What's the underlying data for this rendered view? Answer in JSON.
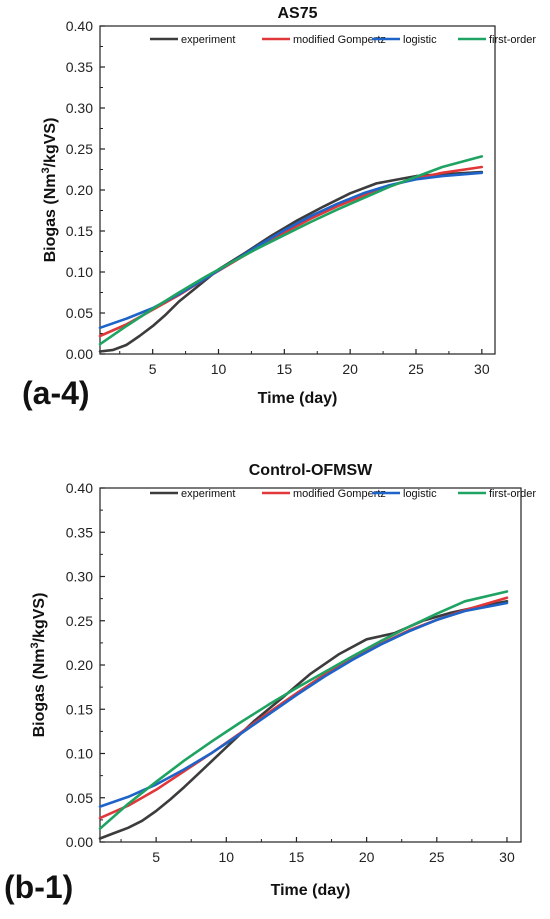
{
  "chart_data": [
    {
      "type": "line",
      "panel_label": "(a-4)",
      "title": "AS75",
      "xlabel": "Time (day)",
      "ylabel_main": "Biogas (Nm",
      "ylabel_sup": "3",
      "ylabel_tail": "/kgVS)",
      "ylabel_bold": true,
      "xlim": [
        1,
        31
      ],
      "ylim": [
        0,
        0.4
      ],
      "xticks": [
        5,
        10,
        15,
        20,
        25,
        30
      ],
      "yticks": [
        "0.00",
        "0.05",
        "0.10",
        "0.15",
        "0.20",
        "0.25",
        "0.30",
        "0.35",
        "0.40"
      ],
      "legend_position": "top",
      "series": [
        {
          "name": "experiment",
          "color": "#3c3c3c",
          "x": [
            1,
            2,
            3,
            4,
            5,
            6,
            7,
            8,
            9,
            10,
            12,
            14,
            16,
            18,
            20,
            22,
            24,
            25,
            26,
            28,
            30
          ],
          "y": [
            0.003,
            0.005,
            0.011,
            0.022,
            0.034,
            0.048,
            0.064,
            0.077,
            0.09,
            0.103,
            0.123,
            0.144,
            0.163,
            0.18,
            0.196,
            0.208,
            0.214,
            0.217,
            0.218,
            0.22,
            0.222
          ]
        },
        {
          "name": "modified Gompertz",
          "color": "#e0383a",
          "x": [
            1,
            3,
            5,
            7,
            9,
            11,
            13,
            15,
            17,
            19,
            21,
            23,
            25,
            27,
            30
          ],
          "y": [
            0.022,
            0.036,
            0.054,
            0.072,
            0.092,
            0.111,
            0.13,
            0.148,
            0.165,
            0.18,
            0.193,
            0.205,
            0.214,
            0.221,
            0.228
          ]
        },
        {
          "name": "logistic",
          "color": "#1e63c8",
          "x": [
            1,
            3,
            5,
            7,
            9,
            11,
            13,
            15,
            17,
            19,
            21,
            23,
            25,
            27,
            30
          ],
          "y": [
            0.032,
            0.043,
            0.056,
            0.073,
            0.092,
            0.112,
            0.132,
            0.151,
            0.168,
            0.183,
            0.196,
            0.206,
            0.213,
            0.217,
            0.221
          ]
        },
        {
          "name": "first-order",
          "color": "#1fa362",
          "x": [
            1,
            3,
            5,
            7,
            9,
            11,
            13,
            15,
            17,
            19,
            21,
            23,
            25,
            27,
            30
          ],
          "y": [
            0.012,
            0.034,
            0.055,
            0.075,
            0.094,
            0.112,
            0.129,
            0.145,
            0.161,
            0.176,
            0.19,
            0.204,
            0.216,
            0.228,
            0.241
          ]
        }
      ]
    },
    {
      "type": "line",
      "panel_label": "(b-1)",
      "title": "Control-OFMSW",
      "xlabel": "Time (day)",
      "ylabel_main": "Biogas (Nm",
      "ylabel_sup": "3",
      "ylabel_tail": "/kgVS)",
      "ylabel_bold": false,
      "xlim": [
        1,
        31
      ],
      "ylim": [
        0,
        0.4
      ],
      "xticks": [
        5,
        10,
        15,
        20,
        25,
        30
      ],
      "yticks": [
        "0.00",
        "0.05",
        "0.10",
        "0.15",
        "0.20",
        "0.25",
        "0.30",
        "0.35",
        "0.40"
      ],
      "legend_position": "top",
      "series": [
        {
          "name": "experiment",
          "color": "#3c3c3c",
          "x": [
            1,
            2,
            3,
            4,
            5,
            6,
            7,
            8,
            9,
            10,
            12,
            14,
            16,
            18,
            20,
            22,
            24,
            26,
            28,
            30
          ],
          "y": [
            0.004,
            0.01,
            0.016,
            0.024,
            0.035,
            0.048,
            0.062,
            0.077,
            0.092,
            0.107,
            0.137,
            0.163,
            0.19,
            0.212,
            0.229,
            0.236,
            0.25,
            0.259,
            0.266,
            0.272
          ]
        },
        {
          "name": "modified Gompertz",
          "color": "#e0383a",
          "x": [
            1,
            3,
            5,
            7,
            9,
            11,
            13,
            15,
            17,
            19,
            21,
            23,
            25,
            27,
            30
          ],
          "y": [
            0.027,
            0.041,
            0.059,
            0.08,
            0.101,
            0.123,
            0.146,
            0.168,
            0.189,
            0.207,
            0.224,
            0.239,
            0.251,
            0.262,
            0.276
          ]
        },
        {
          "name": "logistic",
          "color": "#1e63c8",
          "x": [
            1,
            3,
            5,
            7,
            9,
            11,
            13,
            15,
            17,
            19,
            21,
            23,
            25,
            27,
            30
          ],
          "y": [
            0.04,
            0.051,
            0.065,
            0.082,
            0.101,
            0.122,
            0.144,
            0.166,
            0.187,
            0.206,
            0.223,
            0.238,
            0.251,
            0.261,
            0.27
          ]
        },
        {
          "name": "first-order",
          "color": "#1fa362",
          "x": [
            1,
            3,
            5,
            7,
            9,
            11,
            13,
            15,
            17,
            19,
            21,
            23,
            25,
            27,
            30
          ],
          "y": [
            0.015,
            0.043,
            0.068,
            0.092,
            0.114,
            0.135,
            0.155,
            0.174,
            0.192,
            0.21,
            0.227,
            0.243,
            0.258,
            0.272,
            0.283
          ]
        }
      ]
    }
  ]
}
